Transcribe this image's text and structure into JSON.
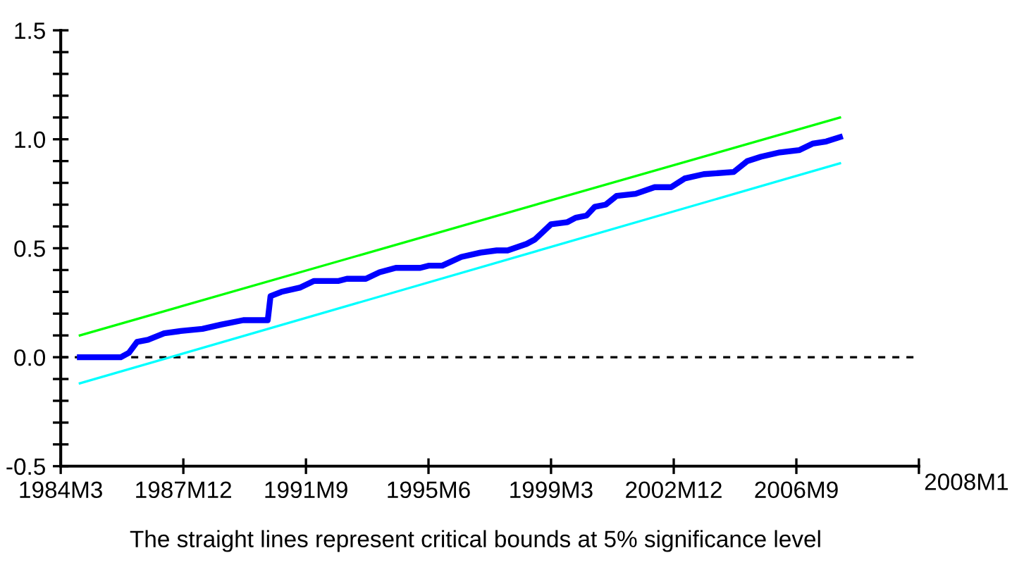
{
  "chart_data": {
    "type": "line",
    "annotations": [
      "2008M1",
      "The straight lines represent critical bounds at 5% significance level"
    ],
    "xlim": [
      "1984-03",
      "2010-06"
    ],
    "xticks": [
      {
        "value": "1984-03",
        "label": "1984M3"
      },
      {
        "value": "1987-12",
        "label": "1987M12"
      },
      {
        "value": "1991-09",
        "label": "1991M9"
      },
      {
        "value": "1995-06",
        "label": "1995M6"
      },
      {
        "value": "1999-03",
        "label": "1999M3"
      },
      {
        "value": "2002-12",
        "label": "2002M12"
      },
      {
        "value": "2006-09",
        "label": "2006M9"
      },
      {
        "value": "2010-06",
        "label": null
      }
    ],
    "ylim": [
      -0.5,
      1.5
    ],
    "yticks": [
      {
        "value": -0.5,
        "label": "-0.5"
      },
      {
        "value": -0.4,
        "label": null
      },
      {
        "value": -0.3,
        "label": null
      },
      {
        "value": -0.2,
        "label": null
      },
      {
        "value": -0.1,
        "label": null
      },
      {
        "value": 0,
        "label": "0.0"
      },
      {
        "value": 0.1,
        "label": null
      },
      {
        "value": 0.2,
        "label": null
      },
      {
        "value": 0.3,
        "label": null
      },
      {
        "value": 0.4,
        "label": null
      },
      {
        "value": 0.5,
        "label": "0.5"
      },
      {
        "value": 0.6,
        "label": null
      },
      {
        "value": 0.7,
        "label": null
      },
      {
        "value": 0.8,
        "label": null
      },
      {
        "value": 0.9,
        "label": null
      },
      {
        "value": 1,
        "label": "1.0"
      },
      {
        "value": 1.1,
        "label": null
      },
      {
        "value": 1.2,
        "label": null
      },
      {
        "value": 1.3,
        "label": null
      },
      {
        "value": 1.4,
        "label": null
      },
      {
        "value": 1.5,
        "label": "1.5"
      }
    ],
    "grid": false,
    "legend": false,
    "marker": "none",
    "ref_lines": [
      {
        "axis": "y",
        "value": 0,
        "label": null,
        "color": "#000000",
        "line_style": "dashed"
      }
    ],
    "series": [
      {
        "color": "#00ff00",
        "x": [
          "1984-10",
          "2008-01"
        ],
        "values": [
          0.1,
          1.1
        ],
        "line_style": "solid"
      },
      {
        "color": "#00ffff",
        "x": [
          "1984-10",
          "2008-01"
        ],
        "values": [
          -0.12,
          0.89
        ],
        "line_style": "solid"
      },
      {
        "color": "#0000ff",
        "line_style": "solid",
        "x": [
          "1984-10",
          "1986-01",
          "1986-04",
          "1986-07",
          "1986-11",
          "1987-05",
          "1987-11",
          "1988-07",
          "1989-02",
          "1989-10",
          "1990-07",
          "1990-08",
          "1990-12",
          "1991-07",
          "1991-12",
          "1992-09",
          "1992-12",
          "1993-07",
          "1993-12",
          "1994-06",
          "1995-03",
          "1995-06",
          "1995-11",
          "1996-06",
          "1997-01",
          "1997-07",
          "1997-11",
          "1998-06",
          "1998-09",
          "1999-03",
          "1999-09",
          "1999-12",
          "2000-04",
          "2000-07",
          "2000-11",
          "2001-03",
          "2001-10",
          "2002-05",
          "2002-11",
          "2003-04",
          "2003-11",
          "2004-10",
          "2005-03",
          "2005-08",
          "2006-03",
          "2006-10",
          "2007-03",
          "2007-08",
          "2008-01"
        ],
        "values": [
          0,
          0,
          0.02,
          0.07,
          0.08,
          0.11,
          0.12,
          0.13,
          0.15,
          0.17,
          0.17,
          0.28,
          0.3,
          0.32,
          0.35,
          0.35,
          0.36,
          0.36,
          0.39,
          0.41,
          0.41,
          0.42,
          0.42,
          0.46,
          0.48,
          0.49,
          0.49,
          0.52,
          0.54,
          0.61,
          0.62,
          0.64,
          0.65,
          0.69,
          0.7,
          0.74,
          0.75,
          0.78,
          0.78,
          0.82,
          0.84,
          0.85,
          0.9,
          0.92,
          0.94,
          0.95,
          0.98,
          0.99,
          1.01
        ]
      }
    ]
  }
}
